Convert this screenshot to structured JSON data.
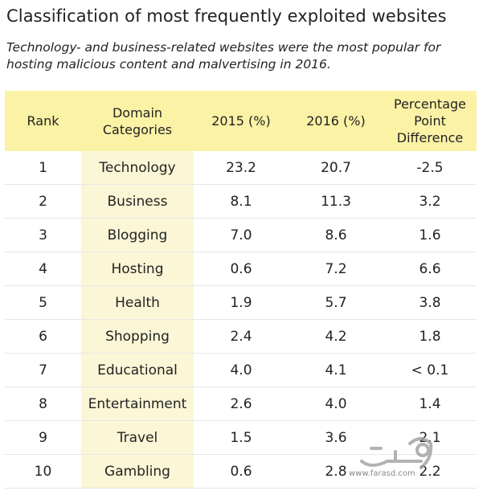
{
  "title": "Classification of most frequently exploited websites",
  "subtitle": "Technology- and business-related websites were the most popular for hosting malicious content and malvertising in 2016.",
  "table": {
    "headers": [
      "Rank",
      "Domain Categories",
      "2015 (%)",
      "2016 (%)",
      "Percentage Point Difference"
    ],
    "rows": [
      {
        "rank": "1",
        "category": "Technology",
        "y2015": "23.2",
        "y2016": "20.7",
        "diff": "-2.5"
      },
      {
        "rank": "2",
        "category": "Business",
        "y2015": "8.1",
        "y2016": "11.3",
        "diff": "3.2"
      },
      {
        "rank": "3",
        "category": "Blogging",
        "y2015": "7.0",
        "y2016": "8.6",
        "diff": "1.6"
      },
      {
        "rank": "4",
        "category": "Hosting",
        "y2015": "0.6",
        "y2016": "7.2",
        "diff": "6.6"
      },
      {
        "rank": "5",
        "category": "Health",
        "y2015": "1.9",
        "y2016": "5.7",
        "diff": "3.8"
      },
      {
        "rank": "6",
        "category": "Shopping",
        "y2015": "2.4",
        "y2016": "4.2",
        "diff": "1.8"
      },
      {
        "rank": "7",
        "category": "Educational",
        "y2015": "4.0",
        "y2016": "4.1",
        "diff": "< 0.1"
      },
      {
        "rank": "8",
        "category": "Entertainment",
        "y2015": "2.6",
        "y2016": "4.0",
        "diff": "1.4"
      },
      {
        "rank": "9",
        "category": "Travel",
        "y2015": "1.5",
        "y2016": "3.6",
        "diff": "2.1"
      },
      {
        "rank": "10",
        "category": "Gambling",
        "y2015": "0.6",
        "y2016": "2.8",
        "diff": "2.2"
      }
    ]
  },
  "watermark": {
    "text": "www.farasd.com",
    "icon": "farsi-logo-watermark"
  },
  "colors": {
    "header_bg": "#fbf2a6",
    "category_bg": "#fbf6d6",
    "row_border": "#e6e6e6"
  }
}
